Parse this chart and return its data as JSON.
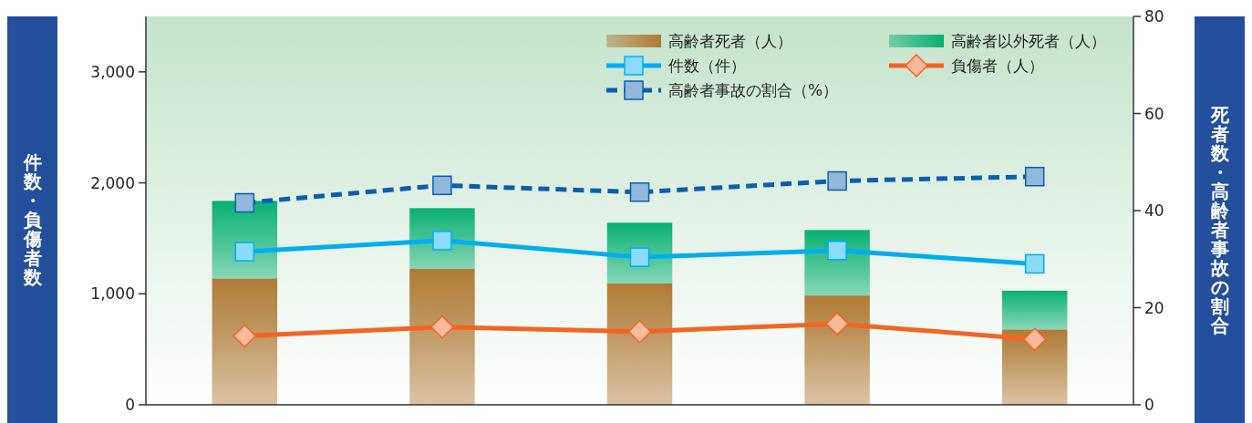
{
  "chart_data": {
    "type": "line",
    "categories": [
      null,
      null,
      null,
      null,
      null
    ],
    "ylabel": "件数・負傷者数",
    "y2label": "死者数・高齢者事故の割合",
    "ylim": [
      0,
      3500
    ],
    "yticks": [
      0,
      {
        "value": 1000,
        "label": "1,000"
      },
      {
        "value": 2000,
        "label": "2,000"
      },
      {
        "value": 3000,
        "label": "3,000"
      }
    ],
    "y2lim": [
      0,
      80
    ],
    "y2ticks": [
      0,
      20,
      40,
      60,
      80
    ],
    "stacked": true,
    "legend": "top right",
    "grid": false,
    "series": [
      {
        "name": "高齢者死者（人）",
        "type": "bar",
        "axis": "y2",
        "color": "#b07a35",
        "values": [
          26,
          28,
          25,
          22.5,
          15.5
        ]
      },
      {
        "name": "高齢者以外死者（人）",
        "type": "bar",
        "axis": "y2",
        "color": "#09b073",
        "values": [
          16,
          12.5,
          12.5,
          13.5,
          8
        ]
      },
      {
        "name": "件数（件）",
        "color": "#00aeef",
        "marker": "square",
        "line_style": "solid",
        "values": [
          1380,
          1480,
          1330,
          1390,
          1270
        ]
      },
      {
        "name": "負傷者（人）",
        "color": "#f26522",
        "marker": "diamond",
        "line_style": "solid",
        "values": [
          620,
          700,
          660,
          730,
          590
        ]
      },
      {
        "name": "高齢者事故の割合（%）",
        "axis": "y2",
        "color": "#0b5eb0",
        "marker": "square",
        "line_style": "dashed",
        "values": [
          41.6,
          45.2,
          43.8,
          46.1,
          47.0
        ]
      }
    ]
  }
}
